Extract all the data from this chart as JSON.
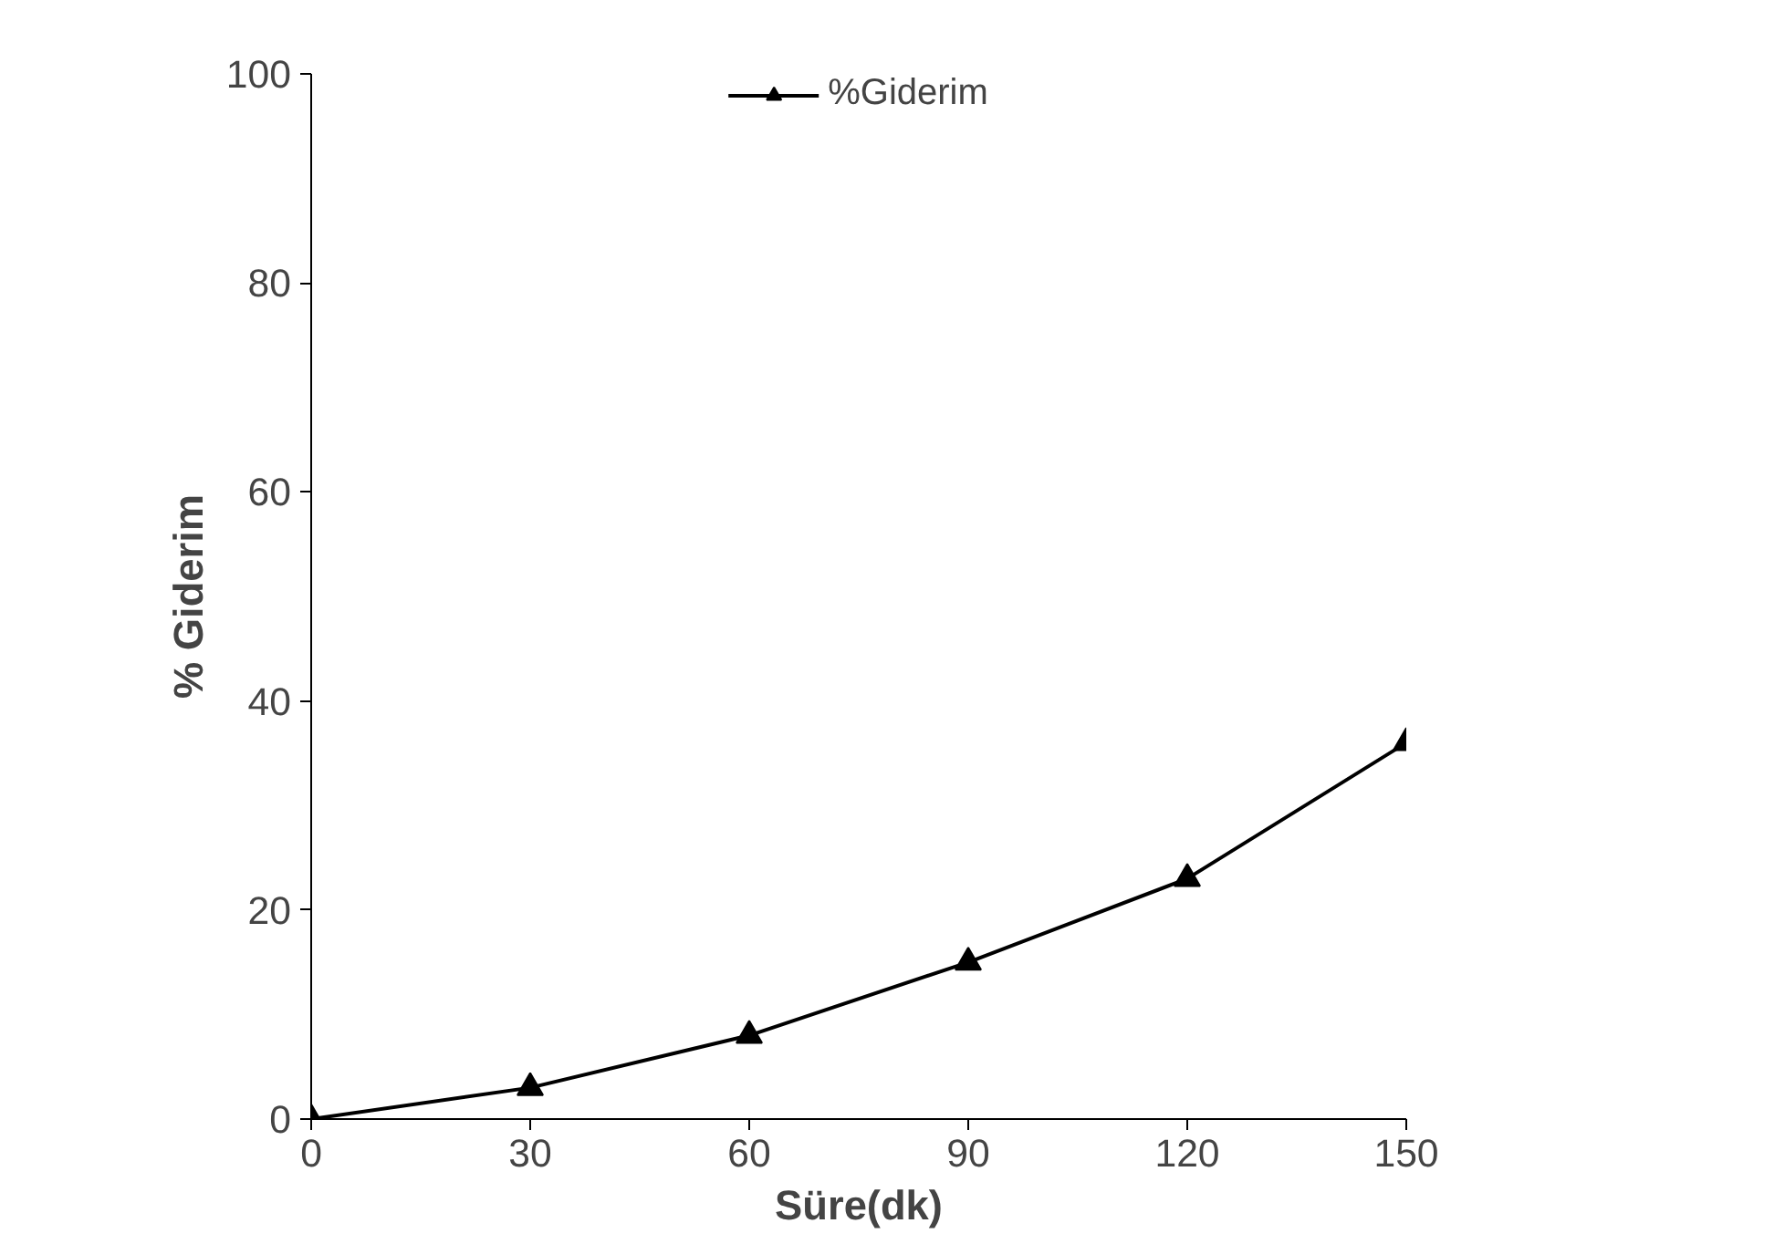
{
  "chart_data": {
    "type": "line",
    "xlabel": "Süre(dk)",
    "ylabel": "% Giderim",
    "x": [
      0,
      30,
      60,
      90,
      120,
      150
    ],
    "xlim": [
      0,
      150
    ],
    "xticks": [
      0,
      30,
      60,
      90,
      120,
      150
    ],
    "ylim": [
      0,
      100
    ],
    "yticks": [
      0,
      20,
      40,
      60,
      80,
      100
    ],
    "series": [
      {
        "name": "%Giderim",
        "color": "#000000",
        "values": [
          0,
          3,
          8,
          15,
          23,
          36
        ]
      }
    ],
    "marker": "triangle",
    "line_style": "solid",
    "grid": false,
    "legend": "top"
  }
}
